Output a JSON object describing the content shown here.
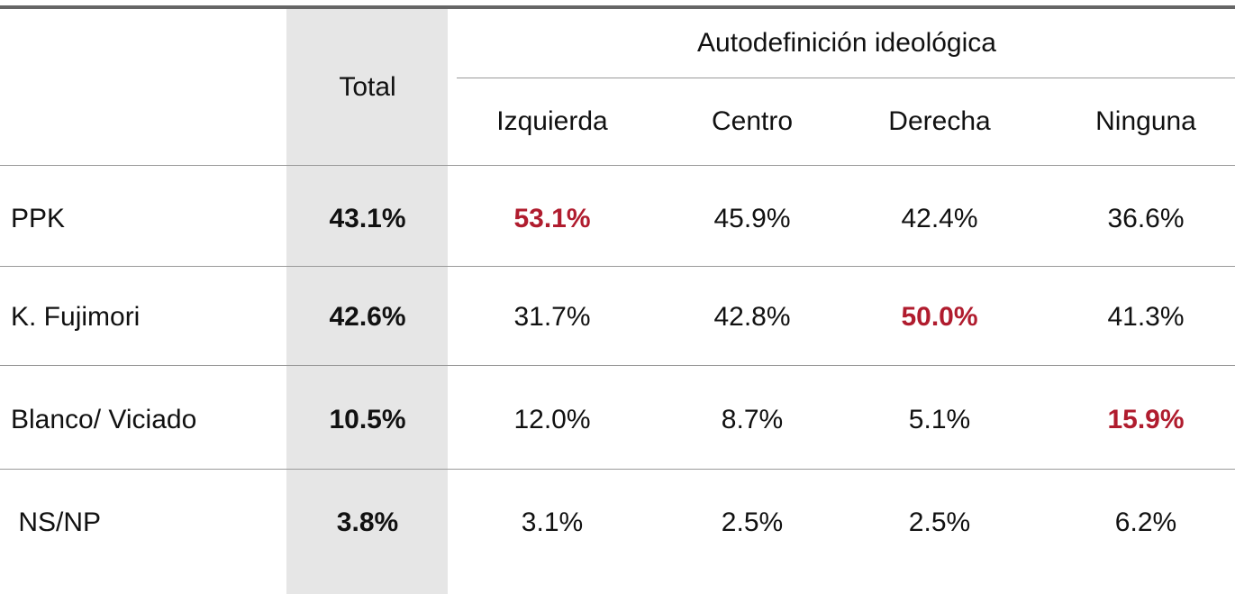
{
  "header": {
    "total": "Total",
    "group": "Autodefinición ideológica",
    "columns": [
      "Izquierda",
      "Centro",
      "Derecha",
      "Ninguna"
    ]
  },
  "highlight_color": "#b01c2e",
  "table": {
    "rows": [
      {
        "label": "PPK",
        "total": "43.1%",
        "values": [
          "53.1%",
          "45.9%",
          "42.4%",
          "36.6%"
        ],
        "highlight": 0
      },
      {
        "label": "K. Fujimori",
        "total": "42.6%",
        "values": [
          "31.7%",
          "42.8%",
          "50.0%",
          "41.3%"
        ],
        "highlight": 2
      },
      {
        "label": "Blanco/ Viciado",
        "total": "10.5%",
        "values": [
          "12.0%",
          "8.7%",
          "5.1%",
          "15.9%"
        ],
        "highlight": 3
      },
      {
        "label": " NS/NP",
        "total": "3.8%",
        "values": [
          "3.1%",
          "2.5%",
          "2.5%",
          "6.2%"
        ]
      }
    ]
  }
}
